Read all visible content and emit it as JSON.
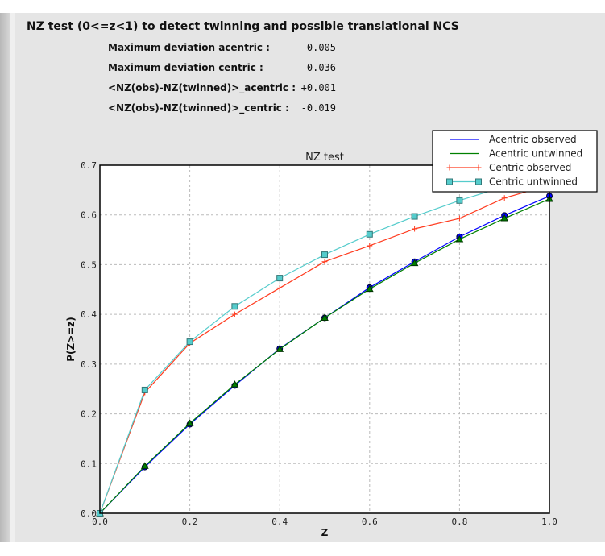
{
  "header": {
    "title": "NZ test (0<=z<1) to detect twinning and possible translational NCS"
  },
  "stats": [
    {
      "label": "Maximum deviation acentric :",
      "value": "0.005"
    },
    {
      "label": "Maximum deviation centric :",
      "value": "0.036"
    },
    {
      "label": "<NZ(obs)-NZ(twinned)>_acentric :",
      "value": "+0.001"
    },
    {
      "label": "<NZ(obs)-NZ(twinned)>_centric :",
      "value": "-0.019"
    }
  ],
  "chart_data": {
    "type": "line",
    "title": "NZ test",
    "xlabel": "Z",
    "ylabel": "P(Z>=z)",
    "xlim": [
      0,
      1.0
    ],
    "ylim": [
      0,
      0.7
    ],
    "xticks": [
      "0.0",
      "0.2",
      "0.4",
      "0.6",
      "0.8",
      "1.0"
    ],
    "yticks": [
      "0.0",
      "0.1",
      "0.2",
      "0.3",
      "0.4",
      "0.5",
      "0.6",
      "0.7"
    ],
    "grid": true,
    "legend_position": "top-right",
    "x": [
      0,
      0.1,
      0.2,
      0.3,
      0.4,
      0.5,
      0.6,
      0.7,
      0.8,
      0.9,
      1.0
    ],
    "series": [
      {
        "name": "Acentric observed",
        "color": "#0000ff",
        "marker": "circle",
        "values": [
          0,
          0.093,
          0.179,
          0.257,
          0.331,
          0.393,
          0.454,
          0.506,
          0.556,
          0.599,
          0.638
        ]
      },
      {
        "name": "Acentric untwinned",
        "color": "#008000",
        "marker": "triangle",
        "values": [
          0,
          0.095,
          0.181,
          0.259,
          0.33,
          0.393,
          0.451,
          0.503,
          0.551,
          0.593,
          0.632
        ]
      },
      {
        "name": "Centric observed",
        "color": "#ff3b1f",
        "marker": "plus",
        "values": [
          0,
          0.243,
          0.342,
          0.4,
          0.453,
          0.506,
          0.538,
          0.572,
          0.593,
          0.634,
          0.66
        ]
      },
      {
        "name": "Centric untwinned",
        "color": "#55cccc",
        "marker": "square",
        "values": [
          0,
          0.248,
          0.345,
          0.416,
          0.473,
          0.52,
          0.561,
          0.597,
          0.629,
          0.657,
          0.683
        ]
      }
    ]
  }
}
